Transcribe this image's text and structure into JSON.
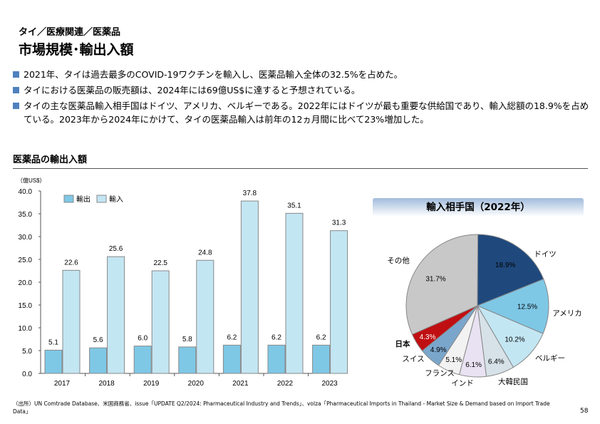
{
  "header": {
    "breadcrumb": "タイ／医療関連／医薬品",
    "title": "市場規模･輸出入額"
  },
  "bullets": [
    "2021年、タイは過去最多のCOVID-19ワクチンを輸入し、医薬品輸入全体の32.5%を占めた。",
    "タイにおける医薬品の販売額は、2024年には69億US$に達すると予想されている。",
    "タイの主な医薬品輸入相手国はドイツ、アメリカ、ベルギーである。2022年にはドイツが最も重要な供給国であり、輸入総額の18.9%を占めている。2023年から2024年にかけて、タイの医薬品輸入は前年の12ヵ月間に比べて23%増加した。"
  ],
  "section_title": "医薬品の輸出入額",
  "chart_data": [
    {
      "type": "bar",
      "unit_label": "（億US$）",
      "categories": [
        "2017",
        "2018",
        "2019",
        "2020",
        "2021",
        "2022",
        "2023"
      ],
      "series": [
        {
          "name": "輸出",
          "values": [
            5.1,
            5.6,
            6.0,
            5.8,
            6.2,
            6.2,
            6.2
          ],
          "color": "#7ec8e6"
        },
        {
          "name": "輸入",
          "values": [
            22.6,
            25.6,
            22.5,
            24.8,
            37.8,
            35.1,
            31.3
          ],
          "color": "#c3e6f3"
        }
      ],
      "ylim": [
        0,
        40
      ],
      "yticks": [
        "0.0",
        "5.0",
        "10.0",
        "15.0",
        "20.0",
        "25.0",
        "30.0",
        "35.0",
        "40.0"
      ],
      "legend": "top-left",
      "grid": false
    },
    {
      "type": "pie",
      "title": "輸入相手国（2022年）",
      "slices": [
        {
          "label": "ドイツ",
          "value": 18.9,
          "text": "18.9%",
          "color": "#1f497d"
        },
        {
          "label": "アメリカ",
          "value": 12.5,
          "text": "12.5%",
          "color": "#7ec8e6"
        },
        {
          "label": "ベルギー",
          "value": 10.2,
          "text": "10.2%",
          "color": "#c3e6f3"
        },
        {
          "label": "大韓民国",
          "value": 6.4,
          "text": "6.4%",
          "color": "#d6e2e8"
        },
        {
          "label": "インド",
          "value": 6.1,
          "text": "6.1%",
          "color": "#e8e2f2"
        },
        {
          "label": "フランス",
          "value": 5.1,
          "text": "5.1%",
          "color": "#f2f2f2"
        },
        {
          "label": "スイス",
          "value": 4.9,
          "text": "4.9%",
          "color": "#7aa6cc"
        },
        {
          "label": "日本",
          "value": 4.3,
          "text": "4.3%",
          "color": "#c00f12"
        },
        {
          "label": "その他",
          "value": 31.7,
          "text": "31.7%",
          "color": "#c8c8c8"
        }
      ]
    }
  ],
  "footer": {
    "source": "（出所）UN Comtrade Database、米国商務省、issue「UPDATE Q2/2024: Pharmaceutical Industry and Trends」、volza「Pharmaceutical Imports in Thailand - Market Size & Demand based on Import Trade Data」",
    "page": "58"
  }
}
